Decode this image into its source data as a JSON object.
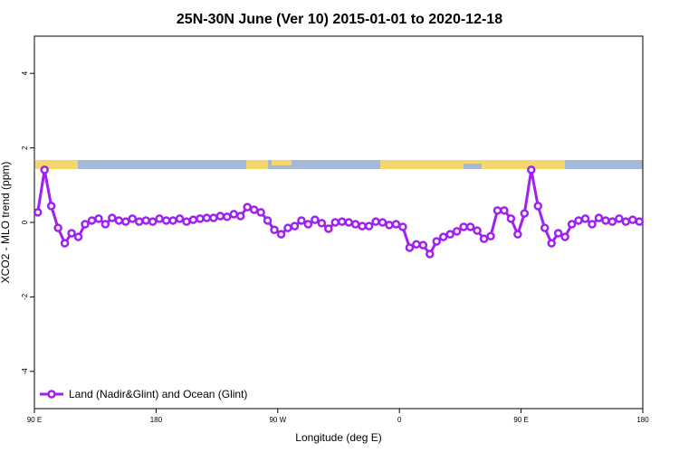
{
  "chart_data": {
    "type": "line",
    "title": "25N-30N June (Ver 10)   2015-01-01 to 2020-12-18",
    "x_label": "Longitude (deg E)",
    "y_label": "XCO2 - MLO trend (ppm)",
    "xlim": [
      90,
      540
    ],
    "xticks": [
      {
        "value": 90,
        "label": "90 E"
      },
      {
        "value": 180,
        "label": "180"
      },
      {
        "value": 270,
        "label": "90 W"
      },
      {
        "value": 360,
        "label": "0"
      },
      {
        "value": 450,
        "label": "90 E"
      },
      {
        "value": 540,
        "label": "180"
      }
    ],
    "ylim": [
      -5,
      5
    ],
    "yticks": [
      -4,
      -2,
      0,
      2,
      4
    ],
    "legend": "bottom-left",
    "x": [
      92.5,
      97.5,
      102.5,
      107.5,
      112.5,
      117.5,
      122.5,
      127.5,
      132.5,
      137.5,
      142.5,
      147.5,
      152.5,
      157.5,
      162.5,
      167.5,
      172.5,
      177.5,
      182.5,
      187.5,
      192.5,
      197.5,
      202.5,
      207.5,
      212.5,
      217.5,
      222.5,
      227.5,
      232.5,
      237.5,
      242.5,
      247.5,
      252.5,
      257.5,
      262.5,
      267.5,
      272.5,
      277.5,
      282.5,
      287.5,
      292.5,
      297.5,
      302.5,
      307.5,
      312.5,
      317.5,
      322.5,
      327.5,
      332.5,
      337.5,
      342.5,
      347.5,
      352.5,
      357.5,
      362.5,
      367.5,
      372.5,
      377.5,
      382.5,
      387.5,
      392.5,
      397.5,
      402.5,
      407.5,
      412.5,
      417.5,
      422.5,
      427.5,
      432.5,
      437.5,
      442.5,
      447.5,
      452.5,
      457.5,
      462.5,
      467.5,
      472.5,
      477.5,
      482.5,
      487.5,
      492.5,
      497.5,
      502.5,
      507.5,
      512.5,
      517.5,
      522.5,
      527.5,
      532.5,
      537.5
    ],
    "series": [
      {
        "name": "Land (Nadir&Glint) and Ocean (Glint)",
        "color": "#a020f0",
        "values": [
          0.27,
          1.41,
          0.44,
          -0.15,
          -0.56,
          -0.29,
          -0.39,
          -0.05,
          0.05,
          0.1,
          -0.05,
          0.12,
          0.05,
          0.02,
          0.1,
          0.02,
          0.05,
          0.02,
          0.1,
          0.05,
          0.05,
          0.1,
          0.02,
          0.07,
          0.1,
          0.12,
          0.12,
          0.17,
          0.15,
          0.22,
          0.17,
          0.41,
          0.34,
          0.27,
          0.05,
          -0.2,
          -0.32,
          -0.15,
          -0.1,
          0.05,
          -0.05,
          0.07,
          -0.02,
          -0.17,
          0,
          0.02,
          0,
          -0.05,
          -0.1,
          -0.1,
          0.02,
          0,
          -0.07,
          -0.05,
          -0.12,
          -0.68,
          -0.59,
          -0.61,
          -0.85,
          -0.51,
          -0.39,
          -0.32,
          -0.24,
          -0.12,
          -0.12,
          -0.22,
          -0.44,
          -0.37,
          0.32,
          0.32,
          0.1,
          -0.32,
          0.24,
          1.41,
          0.44,
          -0.15,
          -0.56,
          -0.29,
          -0.39,
          -0.05,
          0.05,
          0.1,
          -0.05,
          0.12,
          0.05,
          0.02,
          0.1,
          0.02,
          0.07,
          0.02
        ]
      }
    ]
  }
}
